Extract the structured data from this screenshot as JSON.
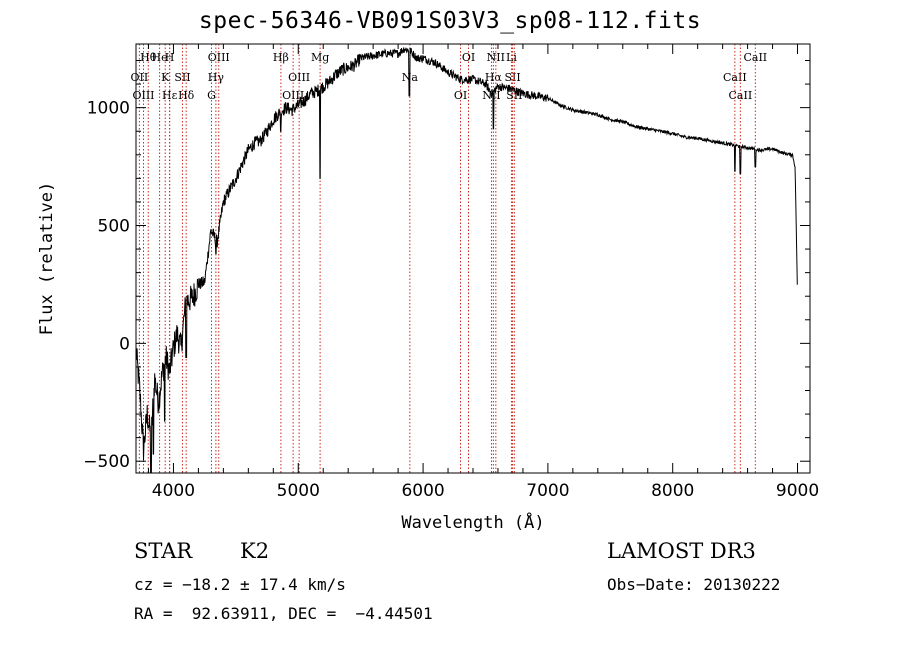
{
  "chart_data": {
    "type": "line",
    "title": "spec-56346-VB091S03V3_sp08-112.fits",
    "xlabel": "Wavelength (Å)",
    "ylabel": "Flux (relative)",
    "xlim": [
      3700,
      9100
    ],
    "ylim": [
      -550,
      1270
    ],
    "xticks": [
      4000,
      5000,
      6000,
      7000,
      8000,
      9000
    ],
    "yticks": [
      -500,
      0,
      500,
      1000
    ],
    "xtick_labels": [
      "4000",
      "5000",
      "6000",
      "7000",
      "8000",
      "9000"
    ],
    "ytick_labels": [
      "−500",
      "0",
      "500",
      "1000"
    ],
    "series": [
      {
        "name": "flux",
        "x": [
          3700,
          3730,
          3760,
          3790,
          3820,
          3850,
          3880,
          3910,
          3940,
          3970,
          4000,
          4030,
          4060,
          4100,
          4150,
          4200,
          4250,
          4300,
          4350,
          4400,
          4450,
          4500,
          4550,
          4600,
          4650,
          4700,
          4750,
          4800,
          4850,
          4900,
          4950,
          5000,
          5050,
          5100,
          5150,
          5200,
          5250,
          5300,
          5350,
          5400,
          5450,
          5500,
          5600,
          5700,
          5800,
          5850,
          5900,
          5950,
          6000,
          6100,
          6200,
          6300,
          6400,
          6500,
          6550,
          6600,
          6700,
          6800,
          6900,
          7000,
          7100,
          7200,
          7300,
          7400,
          7500,
          7600,
          7700,
          7800,
          7900,
          8000,
          8100,
          8200,
          8300,
          8400,
          8500,
          8600,
          8700,
          8800,
          8900,
          8960,
          8980,
          8990,
          9000
        ],
        "y": [
          -30,
          -200,
          -450,
          -300,
          -400,
          -150,
          -250,
          -130,
          -60,
          -120,
          -20,
          40,
          -20,
          180,
          190,
          250,
          260,
          480,
          430,
          600,
          650,
          700,
          760,
          820,
          850,
          860,
          900,
          950,
          980,
          1000,
          990,
          1010,
          1030,
          1060,
          1070,
          1090,
          1110,
          1140,
          1160,
          1170,
          1180,
          1210,
          1220,
          1230,
          1230,
          1250,
          1240,
          1210,
          1210,
          1190,
          1150,
          1120,
          1120,
          1100,
          1060,
          1090,
          1080,
          1060,
          1050,
          1040,
          1010,
          990,
          980,
          970,
          950,
          940,
          920,
          910,
          900,
          890,
          875,
          870,
          860,
          850,
          840,
          830,
          820,
          825,
          805,
          800,
          750,
          500,
          180
        ],
        "absorptions": [
          [
            3820,
            -550
          ],
          [
            3840,
            -470
          ],
          [
            3930,
            -330
          ],
          [
            4102,
            -60
          ],
          [
            4340,
            380
          ],
          [
            4860,
            900
          ],
          [
            5175,
            700
          ],
          [
            5890,
            1050
          ],
          [
            6563,
            910
          ],
          [
            8498,
            730
          ],
          [
            8542,
            720
          ],
          [
            8662,
            750
          ]
        ]
      }
    ],
    "line_markers": [
      {
        "label": "Hθ",
        "wavelength": 3798
      },
      {
        "label": "OII",
        "wavelength": 3727
      },
      {
        "label": "OIII",
        "wavelength": 3760
      },
      {
        "label": "He",
        "wavelength": 3889
      },
      {
        "label": "K",
        "wavelength": 3934
      },
      {
        "label": "Hε",
        "wavelength": 3970
      },
      {
        "label": "H",
        "wavelength": 3969
      },
      {
        "label": "SII",
        "wavelength": 4072
      },
      {
        "label": "Hδ",
        "wavelength": 4102
      },
      {
        "label": "OIII",
        "wavelength": 4363
      },
      {
        "label": "Hγ",
        "wavelength": 4340
      },
      {
        "label": "G",
        "wavelength": 4305
      },
      {
        "label": "Hβ",
        "wavelength": 4861
      },
      {
        "label": "OIII",
        "wavelength": 5007
      },
      {
        "label": "OIII",
        "wavelength": 4959
      },
      {
        "label": "Mg",
        "wavelength": 5175
      },
      {
        "label": "Na",
        "wavelength": 5894
      },
      {
        "label": "OI",
        "wavelength": 6300
      },
      {
        "label": "OI",
        "wavelength": 6364
      },
      {
        "label": "Hα",
        "wavelength": 6563
      },
      {
        "label": "NII",
        "wavelength": 6548
      },
      {
        "label": "NII",
        "wavelength": 6583
      },
      {
        "label": "SII",
        "wavelength": 6717
      },
      {
        "label": "SII",
        "wavelength": 6731
      },
      {
        "label": "Li",
        "wavelength": 6708
      },
      {
        "label": "CaII",
        "wavelength": 8498
      },
      {
        "label": "CaII",
        "wavelength": 8542
      },
      {
        "label": "CaII",
        "wavelength": 8662
      }
    ]
  },
  "info": {
    "object_class": "STAR",
    "subclass": "K2",
    "survey": "LAMOST DR3",
    "cz": "cz = −18.2 ± 17.4 km/s",
    "obs_date": "Obs−Date: 20130222",
    "coords": "RA =  92.63911, DEC =  −4.44501"
  },
  "colors": {
    "marker": "#cc2a1f",
    "spectrum": "#000000",
    "axes": "#000000"
  }
}
